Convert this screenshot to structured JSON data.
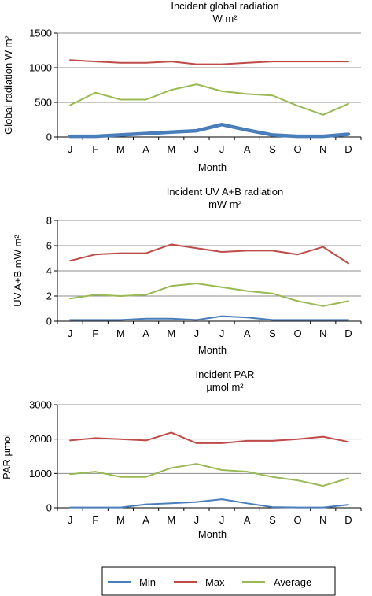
{
  "chart_data": [
    {
      "type": "line",
      "title": "Incident global radiation",
      "subtitle": "W m²",
      "xlabel": "Month",
      "ylabel": "Global radiation W m²",
      "categories": [
        "J",
        "F",
        "M",
        "A",
        "M",
        "J",
        "J",
        "A",
        "S",
        "O",
        "N",
        "D"
      ],
      "ylim": [
        0,
        1500
      ],
      "yticks": [
        0,
        500,
        1000,
        1500
      ],
      "grid": true,
      "series": [
        {
          "name": "Min",
          "color": "#4a7ebb",
          "thick": true,
          "values": [
            10,
            10,
            30,
            50,
            70,
            90,
            180,
            100,
            30,
            10,
            10,
            40
          ]
        },
        {
          "name": "Max",
          "color": "#be4b48",
          "values": [
            1110,
            1090,
            1070,
            1070,
            1090,
            1050,
            1050,
            1070,
            1090,
            1090,
            1090,
            1090
          ]
        },
        {
          "name": "Average",
          "color": "#98b954",
          "values": [
            460,
            640,
            540,
            540,
            680,
            760,
            660,
            620,
            600,
            450,
            320,
            480
          ]
        }
      ]
    },
    {
      "type": "line",
      "title": "Incident UV A+B radiation",
      "subtitle": "mW m²",
      "xlabel": "Month",
      "ylabel": "UV A+B mW m²",
      "categories": [
        "J",
        "F",
        "M",
        "A",
        "M",
        "J",
        "J",
        "A",
        "S",
        "O",
        "N",
        "D"
      ],
      "ylim": [
        0,
        8
      ],
      "yticks": [
        0,
        2,
        4,
        6,
        8
      ],
      "grid": true,
      "series": [
        {
          "name": "Min",
          "color": "#4a7ebb",
          "values": [
            0.1,
            0.1,
            0.1,
            0.2,
            0.2,
            0.1,
            0.4,
            0.3,
            0.1,
            0.1,
            0.1,
            0.1
          ]
        },
        {
          "name": "Max",
          "color": "#be4b48",
          "values": [
            4.8,
            5.3,
            5.4,
            5.4,
            6.1,
            5.8,
            5.5,
            5.6,
            5.6,
            5.3,
            5.9,
            4.6
          ]
        },
        {
          "name": "Average",
          "color": "#98b954",
          "values": [
            1.8,
            2.1,
            2.0,
            2.1,
            2.8,
            3.0,
            2.7,
            2.4,
            2.2,
            1.6,
            1.2,
            1.6
          ]
        }
      ]
    },
    {
      "type": "line",
      "title": "Incident PAR",
      "subtitle": "µmol m²",
      "xlabel": "Month",
      "ylabel": "PAR µmol",
      "categories": [
        "J",
        "F",
        "M",
        "A",
        "M",
        "J",
        "J",
        "A",
        "S",
        "O",
        "N",
        "D"
      ],
      "ylim": [
        0,
        3000
      ],
      "yticks": [
        0,
        1000,
        2000,
        3000
      ],
      "grid": true,
      "series": [
        {
          "name": "Min",
          "color": "#4a7ebb",
          "values": [
            10,
            10,
            10,
            100,
            130,
            170,
            250,
            130,
            20,
            10,
            10,
            90
          ]
        },
        {
          "name": "Max",
          "color": "#be4b48",
          "values": [
            1960,
            2030,
            2000,
            1960,
            2190,
            1880,
            1880,
            1950,
            1950,
            2000,
            2070,
            1920
          ]
        },
        {
          "name": "Average",
          "color": "#98b954",
          "values": [
            980,
            1050,
            900,
            900,
            1160,
            1280,
            1100,
            1050,
            900,
            800,
            640,
            860
          ]
        }
      ]
    }
  ],
  "legend": {
    "position": "bottom",
    "items": [
      {
        "label": "Min",
        "color": "#4a7ebb"
      },
      {
        "label": "Max",
        "color": "#be4b48"
      },
      {
        "label": "Average",
        "color": "#98b954"
      }
    ]
  }
}
